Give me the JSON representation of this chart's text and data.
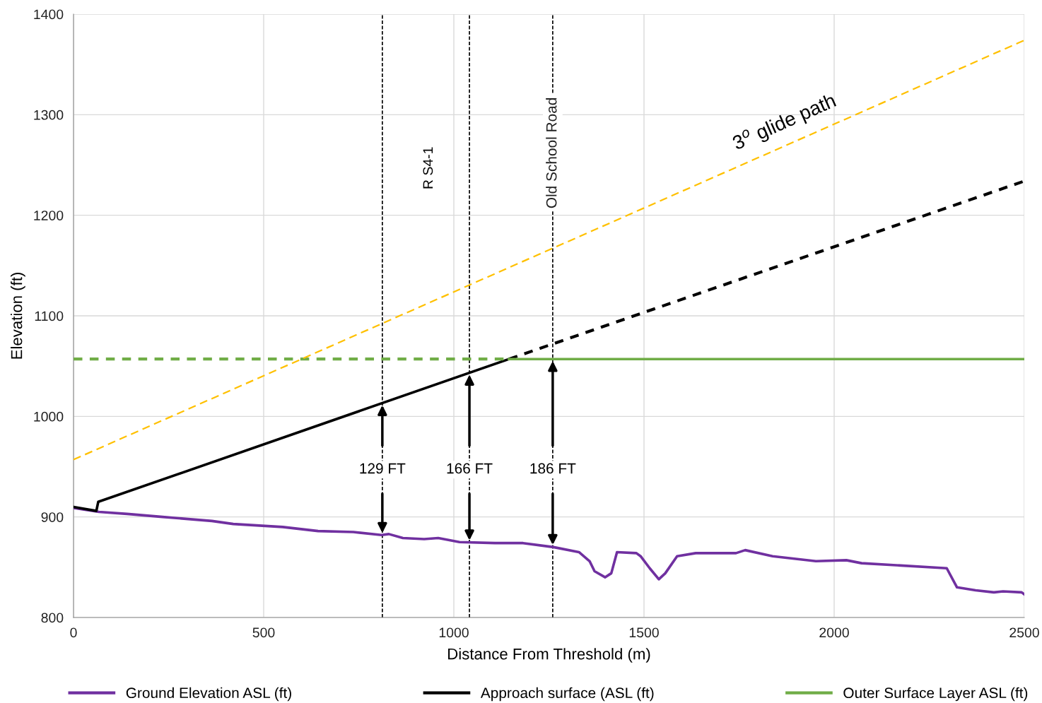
{
  "chart_data": {
    "type": "line",
    "xlabel": "Distance From Threshold (m)",
    "ylabel": "Elevation (ft)",
    "xlim": [
      0,
      2500
    ],
    "xticks": [
      0,
      500,
      1000,
      1500,
      2000,
      2500
    ],
    "ylim": [
      800,
      1400
    ],
    "yticks": [
      800,
      900,
      1000,
      1100,
      1200,
      1300,
      1400
    ],
    "grid": true,
    "legend": "bottom",
    "marker": "none",
    "series": [
      {
        "name": "Ground Elevation ASL (ft)",
        "color": "#7030a0",
        "line_style": "solid",
        "x": [
          0,
          67,
          141,
          234,
          364,
          420,
          550,
          643,
          736,
          810,
          829,
          866,
          922,
          959,
          1015,
          1108,
          1182,
          1262,
          1329,
          1357,
          1370,
          1398,
          1414,
          1429,
          1480,
          1491,
          1515,
          1539,
          1556,
          1587,
          1636,
          1742,
          1766,
          1838,
          1952,
          2032,
          2072,
          2296,
          2323,
          2372,
          2420,
          2444,
          2493,
          2500
        ],
        "values": [
          909,
          905,
          903,
          900,
          896,
          893,
          890,
          886,
          885,
          882,
          883,
          879,
          878,
          879,
          875,
          874,
          874,
          870,
          865,
          856,
          846,
          840,
          844,
          865,
          864,
          861,
          849,
          838,
          844,
          861,
          864,
          864,
          867,
          861,
          856,
          857,
          854,
          849,
          830,
          827,
          825,
          826,
          825,
          823
        ]
      },
      {
        "name": "Approach surface (ASL (ft)",
        "color": "#000000",
        "line_style": "solid",
        "x": [
          0,
          60,
          65,
          1145
        ],
        "values": [
          910,
          906,
          915,
          1057
        ]
      },
      {
        "color": "#000000",
        "line_style": "dashed",
        "x": [
          1145,
          2500
        ],
        "values": [
          1057,
          1234
        ]
      },
      {
        "name": "Outer Surface Layer ASL (ft)",
        "color": "#70ad47",
        "line_style": "solid",
        "x": [
          1145,
          2500
        ],
        "values": [
          1057,
          1057
        ]
      },
      {
        "color": "#70ad47",
        "line_style": "dashed",
        "x": [
          0,
          1145
        ],
        "values": [
          1057,
          1057
        ]
      },
      {
        "color": "#ffc000",
        "line_style": "dashed",
        "x": [
          0,
          2500
        ],
        "values": [
          957,
          1374
        ]
      }
    ],
    "ref_lines": [
      {
        "axis": "x",
        "value": 812,
        "label": null,
        "color": "#000000",
        "line_style": "dashed"
      },
      {
        "axis": "x",
        "value": 1041,
        "label": null,
        "color": "#000000",
        "line_style": "dashed"
      },
      {
        "axis": "x",
        "value": 1260,
        "label": "Old School Road",
        "color": "#000000",
        "line_style": "dashed"
      }
    ],
    "annotations": [
      {
        "text": "129 FT",
        "x": 812,
        "y": 947
      },
      {
        "text": "166 FT",
        "x": 1041,
        "y": 947
      },
      {
        "text": "186 FT",
        "x": 1260,
        "y": 947
      },
      "R S4-1",
      "3$^{o}$ glide path"
    ]
  }
}
